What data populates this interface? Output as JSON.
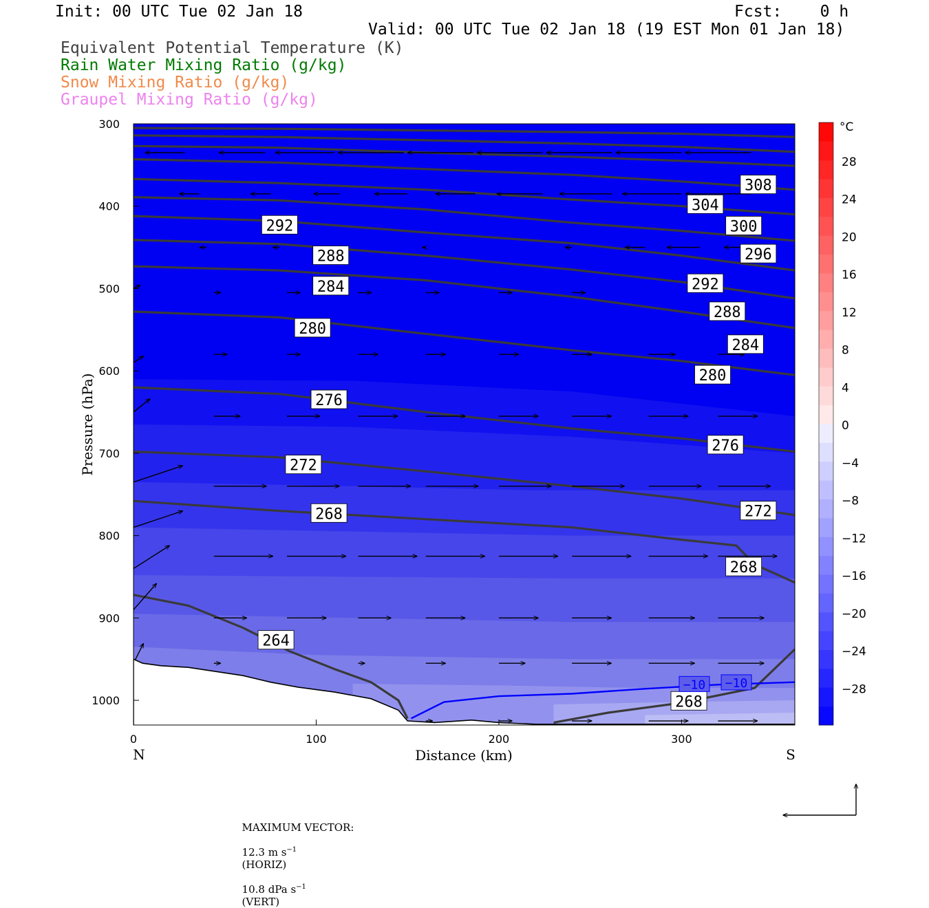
{
  "header": {
    "init": "Init: 00 UTC Tue 02 Jan 18",
    "fcst": "Fcst:    0 h",
    "valid": "Valid: 00 UTC Tue 02 Jan 18 (19 EST Mon 01 Jan 18)",
    "legend": [
      {
        "text": "Equivalent Potential Temperature (K)",
        "color": "#404040"
      },
      {
        "text": "Rain Water Mixing Ratio (g/kg)",
        "color": "#007a00"
      },
      {
        "text": "Snow Mixing Ratio (g/kg)",
        "color": "#f08a4b"
      },
      {
        "text": "Graupel Mixing Ratio (g/kg)",
        "color": "#ee82ee"
      }
    ]
  },
  "chart_data": {
    "type": "heatmap",
    "description_fields": {
      "fill": "Temperature (°C)",
      "contours": "Equivalent Potential Temperature (K)"
    },
    "xlabel": "Distance (km)",
    "ylabel": "Pressure (hPa)",
    "xlim": [
      0,
      362
    ],
    "ylim": [
      1030,
      300
    ],
    "x_ticks": [
      0,
      100,
      200,
      300
    ],
    "y_ticks": [
      300,
      400,
      500,
      600,
      700,
      800,
      900,
      1000
    ],
    "x_end_labels": {
      "left": "N",
      "right": "S"
    },
    "colorbar": {
      "unit": "°C",
      "ticks": [
        28,
        24,
        20,
        16,
        12,
        8,
        4,
        0,
        -4,
        -8,
        -12,
        -16,
        -20,
        -24,
        -28
      ],
      "levels": [
        -32,
        -30,
        -28,
        -26,
        -24,
        -22,
        -20,
        -18,
        -16,
        -14,
        -12,
        -10,
        -8,
        -6,
        -4,
        -2,
        0,
        2,
        4,
        6,
        8,
        10,
        12,
        14,
        16,
        18,
        20,
        22,
        24,
        26,
        28,
        30,
        32
      ]
    },
    "theta_e_contours": [
      {
        "label": "264",
        "points": [
          [
            0,
            872
          ],
          [
            30,
            885
          ],
          [
            60,
            912
          ],
          [
            85,
            940
          ],
          [
            110,
            962
          ],
          [
            130,
            978
          ],
          [
            145,
            1000
          ],
          [
            150,
            1022
          ]
        ]
      },
      {
        "label": "268",
        "points": [
          [
            0,
            758
          ],
          [
            80,
            770
          ],
          [
            160,
            780
          ],
          [
            240,
            790
          ],
          [
            300,
            805
          ],
          [
            330,
            812
          ],
          [
            340,
            835
          ],
          [
            362,
            857
          ]
        ]
      },
      {
        "label": "268",
        "points": [
          [
            230,
            1027
          ],
          [
            260,
            1015
          ],
          [
            300,
            1003
          ],
          [
            340,
            985
          ],
          [
            362,
            938
          ]
        ]
      },
      {
        "label": "272",
        "points": [
          [
            0,
            698
          ],
          [
            80,
            705
          ],
          [
            160,
            722
          ],
          [
            240,
            740
          ],
          [
            300,
            755
          ],
          [
            362,
            775
          ]
        ]
      },
      {
        "label": "276",
        "points": [
          [
            0,
            620
          ],
          [
            80,
            628
          ],
          [
            160,
            650
          ],
          [
            240,
            670
          ],
          [
            300,
            682
          ],
          [
            362,
            698
          ]
        ]
      },
      {
        "label": "280",
        "points": [
          [
            0,
            528
          ],
          [
            80,
            535
          ],
          [
            160,
            555
          ],
          [
            240,
            575
          ],
          [
            300,
            588
          ],
          [
            362,
            605
          ]
        ]
      },
      {
        "label": "284",
        "points": [
          [
            0,
            473
          ],
          [
            80,
            478
          ],
          [
            160,
            490
          ],
          [
            240,
            510
          ],
          [
            300,
            528
          ],
          [
            362,
            548
          ]
        ]
      },
      {
        "label": "288",
        "points": [
          [
            0,
            441
          ],
          [
            80,
            446
          ],
          [
            160,
            460
          ],
          [
            240,
            477
          ],
          [
            300,
            492
          ],
          [
            362,
            512
          ]
        ]
      },
      {
        "label": "292",
        "points": [
          [
            0,
            412
          ],
          [
            80,
            418
          ],
          [
            160,
            432
          ],
          [
            240,
            445
          ],
          [
            300,
            460
          ],
          [
            362,
            478
          ]
        ]
      },
      {
        "label": "296",
        "points": [
          [
            0,
            389
          ],
          [
            80,
            393
          ],
          [
            160,
            404
          ],
          [
            240,
            420
          ],
          [
            300,
            430
          ],
          [
            362,
            442
          ]
        ]
      },
      {
        "label": "300",
        "points": [
          [
            0,
            367
          ],
          [
            80,
            372
          ],
          [
            160,
            380
          ],
          [
            240,
            392
          ],
          [
            300,
            400
          ],
          [
            362,
            410
          ]
        ]
      },
      {
        "label": "304",
        "points": [
          [
            0,
            343
          ],
          [
            80,
            347
          ],
          [
            160,
            355
          ],
          [
            240,
            362
          ],
          [
            300,
            370
          ],
          [
            362,
            380
          ]
        ]
      },
      {
        "label": "308",
        "points": [
          [
            0,
            327
          ],
          [
            80,
            329
          ],
          [
            160,
            335
          ],
          [
            240,
            340
          ],
          [
            300,
            345
          ],
          [
            362,
            351
          ]
        ]
      },
      {
        "label": "",
        "points": [
          [
            0,
            314
          ],
          [
            80,
            316
          ],
          [
            160,
            320
          ],
          [
            240,
            324
          ],
          [
            300,
            328
          ],
          [
            362,
            334
          ]
        ]
      },
      {
        "label": "",
        "points": [
          [
            0,
            305
          ],
          [
            80,
            306
          ],
          [
            160,
            308
          ],
          [
            240,
            310
          ],
          [
            300,
            312
          ],
          [
            362,
            316
          ]
        ]
      }
    ],
    "contour_label_positions": [
      {
        "text": "292",
        "x": 80,
        "y": 423
      },
      {
        "text": "288",
        "x": 108,
        "y": 460
      },
      {
        "text": "284",
        "x": 108,
        "y": 497
      },
      {
        "text": "280",
        "x": 98,
        "y": 548
      },
      {
        "text": "276",
        "x": 107,
        "y": 635
      },
      {
        "text": "272",
        "x": 93,
        "y": 714
      },
      {
        "text": "268",
        "x": 107,
        "y": 773
      },
      {
        "text": "264",
        "x": 78,
        "y": 927
      },
      {
        "text": "308",
        "x": 342,
        "y": 374
      },
      {
        "text": "304",
        "x": 313,
        "y": 398
      },
      {
        "text": "300",
        "x": 334,
        "y": 424
      },
      {
        "text": "296",
        "x": 342,
        "y": 458
      },
      {
        "text": "292",
        "x": 313,
        "y": 494
      },
      {
        "text": "288",
        "x": 325,
        "y": 528
      },
      {
        "text": "284",
        "x": 335,
        "y": 568
      },
      {
        "text": "280",
        "x": 317,
        "y": 605
      },
      {
        "text": "276",
        "x": 324,
        "y": 690
      },
      {
        "text": "272",
        "x": 342,
        "y": 770
      },
      {
        "text": "268",
        "x": 334,
        "y": 838
      },
      {
        "text": "268",
        "x": 304,
        "y": 1001
      }
    ],
    "temperature_contours": [
      {
        "label": "-10",
        "color": "#0000ff",
        "points": [
          [
            152,
            1022
          ],
          [
            170,
            1002
          ],
          [
            200,
            995
          ],
          [
            240,
            992
          ],
          [
            280,
            986
          ],
          [
            320,
            981
          ],
          [
            362,
            978
          ]
        ]
      }
    ],
    "temperature_contour_labels": [
      {
        "text": "-10",
        "x": 307,
        "y": 981
      },
      {
        "text": "-10",
        "x": 330,
        "y": 979
      }
    ],
    "terrain_pressure": [
      [
        0,
        950
      ],
      [
        5,
        955
      ],
      [
        15,
        958
      ],
      [
        30,
        960
      ],
      [
        45,
        965
      ],
      [
        60,
        970
      ],
      [
        75,
        978
      ],
      [
        90,
        984
      ],
      [
        110,
        990
      ],
      [
        130,
        998
      ],
      [
        145,
        1012
      ],
      [
        150,
        1025
      ],
      [
        165,
        1027
      ],
      [
        185,
        1024
      ],
      [
        200,
        1027
      ],
      [
        220,
        1029
      ],
      [
        362,
        1029
      ]
    ],
    "wind_vectors": {
      "rows": [
        {
          "p": 335,
          "u": [
            [
              28,
              -0.6
            ],
            [
              72,
              -0.7
            ],
            [
              110,
              -0.9
            ],
            [
              148,
              -1
            ],
            [
              186,
              -1
            ],
            [
              224,
              -1
            ],
            [
              262,
              -1
            ],
            [
              300,
              -1
            ],
            [
              338,
              -1
            ]
          ]
        },
        {
          "p": 385,
          "u": [
            [
              36,
              -0.3
            ],
            [
              75,
              -0.3
            ],
            [
              113,
              -0.4
            ],
            [
              150,
              -0.5
            ],
            [
              187,
              -0.6
            ],
            [
              224,
              -0.7
            ],
            [
              262,
              -0.8
            ],
            [
              300,
              -0.9
            ],
            [
              338,
              -1
            ]
          ]
        },
        {
          "p": 450,
          "u": [
            [
              40,
              -0.1
            ],
            [
              80,
              -0.1
            ],
            [
              160,
              -0.05
            ],
            [
              240,
              -0.1
            ],
            [
              280,
              -0.3
            ],
            [
              310,
              -0.5
            ],
            [
              345,
              -0.6
            ]
          ]
        },
        {
          "p": 505,
          "u": [
            [
              44,
              0.1
            ],
            [
              84,
              0.2
            ],
            [
              123,
              0.2
            ],
            [
              160,
              0.2
            ],
            [
              200,
              0.2
            ],
            [
              240,
              0.2
            ]
          ]
        },
        {
          "p": 580,
          "u": [
            [
              44,
              0.2
            ],
            [
              84,
              0.2
            ],
            [
              123,
              0.3
            ],
            [
              160,
              0.3
            ],
            [
              200,
              0.3
            ],
            [
              240,
              0.3
            ],
            [
              282,
              0.4
            ],
            [
              320,
              0.4
            ]
          ]
        },
        {
          "p": 655,
          "u": [
            [
              44,
              0.4
            ],
            [
              84,
              0.5
            ],
            [
              123,
              0.6
            ],
            [
              160,
              0.6
            ],
            [
              200,
              0.6
            ],
            [
              240,
              0.6
            ],
            [
              282,
              0.6
            ],
            [
              320,
              0.6
            ]
          ]
        },
        {
          "p": 740,
          "u": [
            [
              44,
              0.8
            ],
            [
              84,
              0.8
            ],
            [
              123,
              0.8
            ],
            [
              160,
              0.8
            ],
            [
              200,
              0.8
            ],
            [
              240,
              0.8
            ],
            [
              282,
              0.8
            ],
            [
              320,
              0.8
            ]
          ]
        },
        {
          "p": 825,
          "u": [
            [
              44,
              0.9
            ],
            [
              84,
              0.9
            ],
            [
              123,
              0.9
            ],
            [
              160,
              0.9
            ],
            [
              200,
              0.9
            ],
            [
              240,
              0.9
            ],
            [
              282,
              0.9
            ],
            [
              320,
              0.9
            ]
          ]
        },
        {
          "p": 900,
          "u": [
            [
              44,
              0.5
            ],
            [
              84,
              0.6
            ],
            [
              123,
              0.5
            ],
            [
              160,
              0.6
            ],
            [
              200,
              0.6
            ],
            [
              240,
              0.6
            ],
            [
              282,
              0.7
            ],
            [
              320,
              0.7
            ]
          ]
        },
        {
          "p": 955,
          "u": [
            [
              44,
              0.1
            ],
            [
              123,
              0.1
            ],
            [
              160,
              0.3
            ],
            [
              200,
              0.4
            ],
            [
              240,
              0.6
            ],
            [
              282,
              0.7
            ],
            [
              320,
              0.7
            ]
          ]
        },
        {
          "p": 1025,
          "u": [
            [
              160,
              0.1
            ],
            [
              200,
              0.2
            ],
            [
              240,
              0.3
            ],
            [
              282,
              0.6
            ],
            [
              320,
              0.6
            ]
          ]
        }
      ],
      "edge": [
        [
          0,
          955,
          0.15,
          -0.3
        ],
        [
          0,
          890,
          0.35,
          -0.4
        ],
        [
          0,
          840,
          0.55,
          -0.35
        ],
        [
          0,
          790,
          0.75,
          -0.25
        ],
        [
          0,
          735,
          0.75,
          -0.25
        ],
        [
          0,
          650,
          0.25,
          -0.2
        ],
        [
          0,
          590,
          0.15,
          -0.1
        ],
        [
          0,
          500,
          0.1,
          -0.05
        ]
      ]
    },
    "footer": {
      "max_vector_label": "MAXIMUM VECTOR:",
      "horiz": "12.3 m s",
      "horiz_exp": "−1",
      "horiz_tag": "(HORIZ)",
      "vert": "10.8 dPa s",
      "vert_exp": "−1",
      "vert_tag": "(VERT)"
    }
  }
}
